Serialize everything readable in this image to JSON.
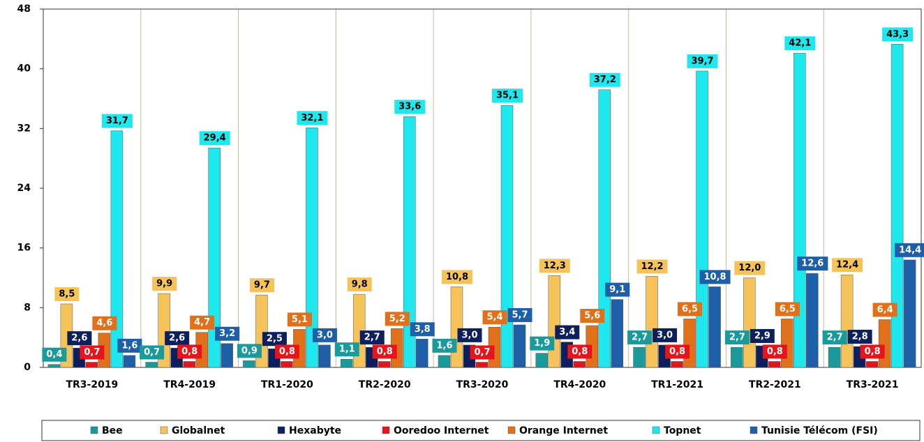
{
  "chart_data": {
    "type": "bar",
    "categories": [
      "TR3-2019",
      "TR4-2019",
      "TR1-2020",
      "TR2-2020",
      "TR3-2020",
      "TR4-2020",
      "TR1-2021",
      "TR2-2021",
      "TR3-2021"
    ],
    "ylim": [
      0,
      48
    ],
    "yticks": [
      0,
      8,
      16,
      24,
      32,
      40,
      48
    ],
    "grid": true,
    "legend": "bottom",
    "series": [
      {
        "name": "Bee",
        "color": "#1a9a9a",
        "values": [
          0.4,
          0.7,
          0.9,
          1.1,
          1.6,
          1.9,
          2.7,
          2.7,
          2.7
        ],
        "value_labels": [
          "0,4",
          "0,7",
          "0,9",
          "1,1",
          "1,6",
          "1,9",
          "2,7",
          "2,7",
          "2,7"
        ]
      },
      {
        "name": "Globalnet",
        "color": "#f5c35a",
        "values": [
          8.5,
          9.9,
          9.7,
          9.8,
          10.8,
          12.3,
          12.2,
          12.0,
          12.4
        ],
        "value_labels": [
          "8,5",
          "9,9",
          "9,7",
          "9,8",
          "10,8",
          "12,3",
          "12,2",
          "12,0",
          "12,4"
        ]
      },
      {
        "name": "Hexabyte",
        "color": "#0d1f5c",
        "values": [
          2.6,
          2.6,
          2.5,
          2.7,
          3.0,
          3.4,
          3.0,
          2.9,
          2.8
        ],
        "value_labels": [
          "2,6",
          "2,6",
          "2,5",
          "2,7",
          "3,0",
          "3,4",
          "3,0",
          "2,9",
          "2,8"
        ]
      },
      {
        "name": "Ooredoo Internet",
        "color": "#e8141c",
        "values": [
          0.7,
          0.8,
          0.8,
          0.8,
          0.7,
          0.8,
          0.8,
          0.8,
          0.8
        ],
        "value_labels": [
          "0,7",
          "0,8",
          "0,8",
          "0,8",
          "0,7",
          "0,8",
          "0,8",
          "0,8",
          "0,8"
        ]
      },
      {
        "name": "Orange Internet",
        "color": "#e0701a",
        "values": [
          4.6,
          4.7,
          5.1,
          5.2,
          5.4,
          5.6,
          6.5,
          6.5,
          6.4
        ],
        "value_labels": [
          "4,6",
          "4,7",
          "5,1",
          "5,2",
          "5,4",
          "5,6",
          "6,5",
          "6,5",
          "6,4"
        ]
      },
      {
        "name": "Topnet",
        "color": "#1ee8ee",
        "values": [
          31.7,
          29.4,
          32.1,
          33.6,
          35.1,
          37.2,
          39.7,
          42.1,
          43.3
        ],
        "value_labels": [
          "31,7",
          "29,4",
          "32,1",
          "33,6",
          "35,1",
          "37,2",
          "39,7",
          "42,1",
          "43,3"
        ]
      },
      {
        "name": "Tunisie Télécom (FSI)",
        "color": "#1f5fa8",
        "values": [
          1.6,
          3.2,
          3.0,
          3.8,
          5.7,
          9.1,
          10.8,
          12.6,
          14.4
        ],
        "value_labels": [
          "1,6",
          "3,2",
          "3,0",
          "3,8",
          "5,7",
          "9,1",
          "10,8",
          "12,6",
          "14,4"
        ]
      }
    ]
  }
}
